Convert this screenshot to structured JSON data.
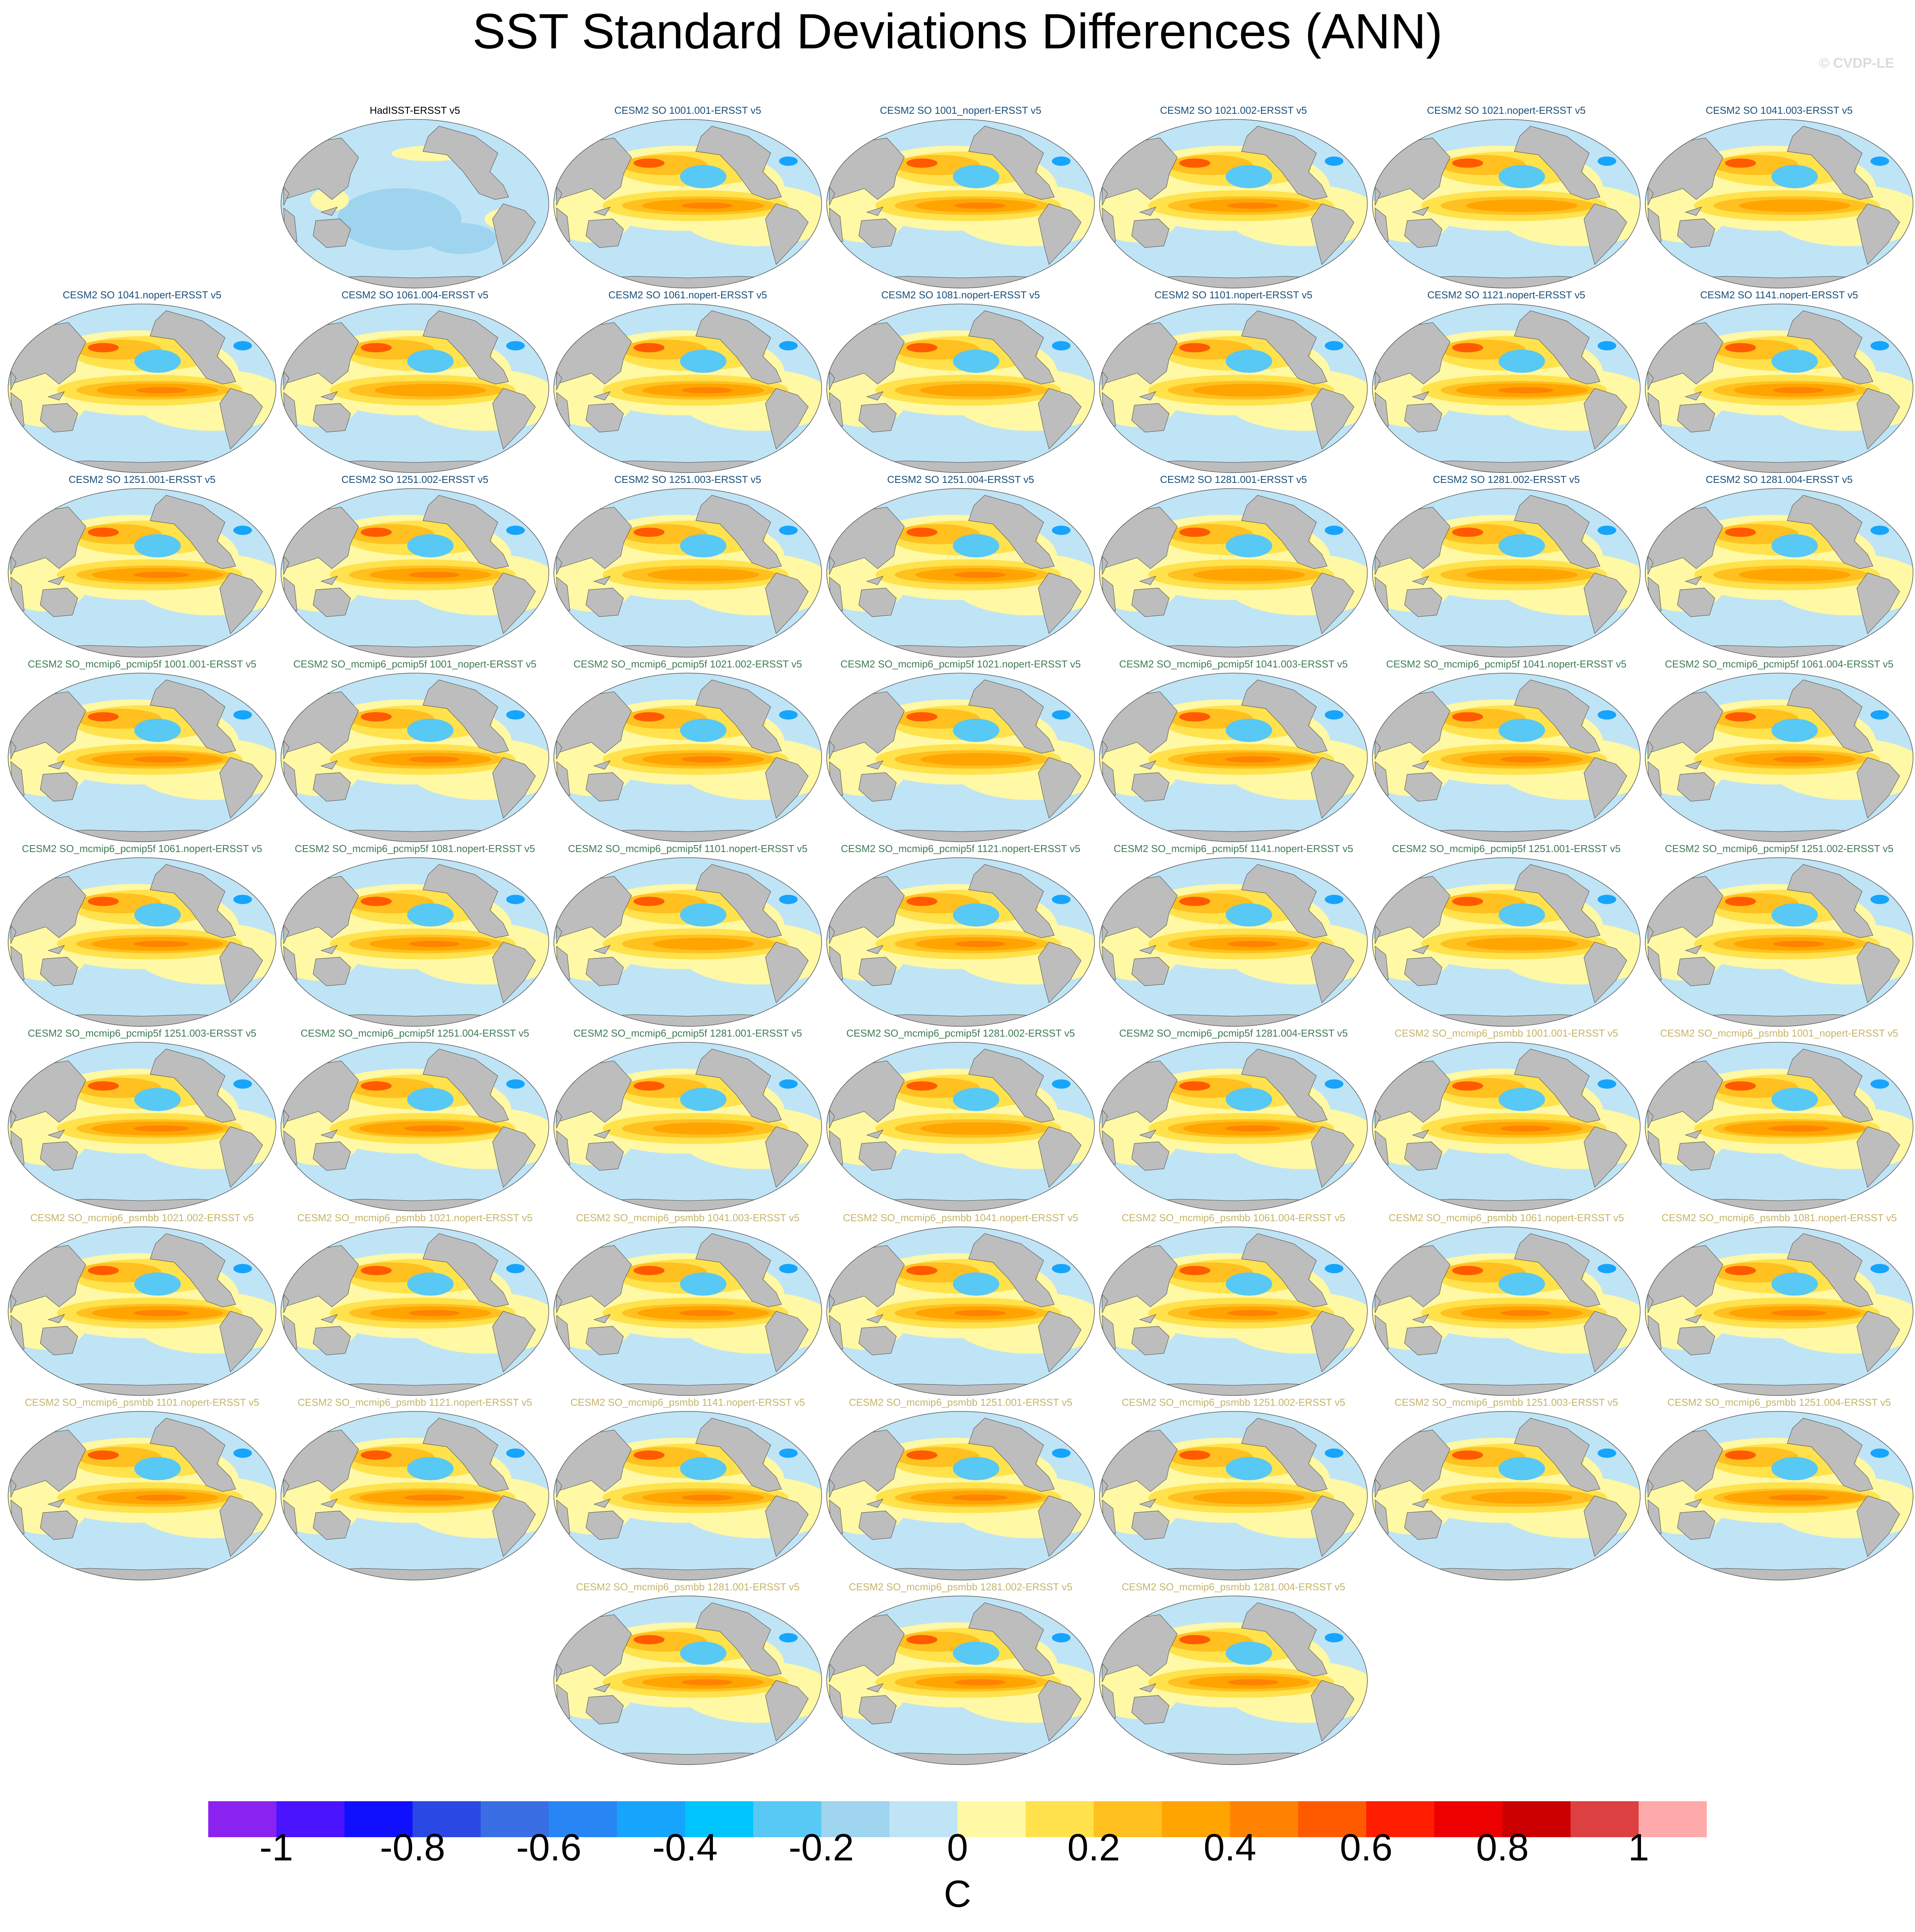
{
  "title": "SST Standard Deviations Differences (ANN)",
  "credit": "© CVDP-LE",
  "chart_data": {
    "type": "heatmap",
    "title": "SST Standard Deviations Differences (ANN)",
    "variable": "SST standard deviation difference vs ERSST v5",
    "season": "ANN",
    "projection": "global map (Robinson-like, Pacific-centered)",
    "units": "C",
    "colorbar": {
      "min": -1.1,
      "max": 1.1,
      "interval": 0.1,
      "tick_labels": [
        "-1",
        "-0.8",
        "-0.6",
        "-0.4",
        "-0.2",
        "0",
        "0.2",
        "0.4",
        "0.6",
        "0.8",
        "1"
      ],
      "tick_values": [
        -1,
        -0.8,
        -0.6,
        -0.4,
        -0.2,
        0,
        0.2,
        0.4,
        0.6,
        0.8,
        1
      ],
      "colors": [
        "#8a22f0",
        "#4a14ff",
        "#1010ff",
        "#2a48e4",
        "#3a6ee4",
        "#2886f4",
        "#16a4fc",
        "#00c4fc",
        "#58c8f4",
        "#9ed4ee",
        "#bee4f6",
        "#fff8a4",
        "#ffe24c",
        "#ffc020",
        "#ffa400",
        "#ff8200",
        "#ff5a00",
        "#ff1e00",
        "#ee0000",
        "#cc0000",
        "#dc4040",
        "#ffaaaa"
      ]
    },
    "panels": [
      {
        "label": "HadISST-ERSST v5",
        "group": "obs",
        "row": 0,
        "col": 1,
        "nino_strength": -0.1
      },
      {
        "label": "CESM2 SO 1001.001-ERSST v5",
        "group": "so",
        "row": 0,
        "col": 2,
        "nino_strength": 0.45
      },
      {
        "label": "CESM2 SO 1001_nopert-ERSST v5",
        "group": "so",
        "row": 0,
        "col": 3,
        "nino_strength": 0.45
      },
      {
        "label": "CESM2 SO 1021.002-ERSST v5",
        "group": "so",
        "row": 0,
        "col": 4,
        "nino_strength": 0.45
      },
      {
        "label": "CESM2 SO 1021.nopert-ERSST v5",
        "group": "so",
        "row": 0,
        "col": 5,
        "nino_strength": 0.4
      },
      {
        "label": "CESM2 SO 1041.003-ERSST v5",
        "group": "so",
        "row": 0,
        "col": 6,
        "nino_strength": 0.4
      },
      {
        "label": "CESM2 SO 1041.nopert-ERSST v5",
        "group": "so",
        "row": 1,
        "col": 0,
        "nino_strength": 0.45
      },
      {
        "label": "CESM2 SO 1061.004-ERSST v5",
        "group": "so",
        "row": 1,
        "col": 1,
        "nino_strength": 0.4
      },
      {
        "label": "CESM2 SO 1061.nopert-ERSST v5",
        "group": "so",
        "row": 1,
        "col": 2,
        "nino_strength": 0.45
      },
      {
        "label": "CESM2 SO 1081.nopert-ERSST v5",
        "group": "so",
        "row": 1,
        "col": 3,
        "nino_strength": 0.4
      },
      {
        "label": "CESM2 SO 1101.nopert-ERSST v5",
        "group": "so",
        "row": 1,
        "col": 4,
        "nino_strength": 0.4
      },
      {
        "label": "CESM2 SO 1121.nopert-ERSST v5",
        "group": "so",
        "row": 1,
        "col": 5,
        "nino_strength": 0.5
      },
      {
        "label": "CESM2 SO 1141.nopert-ERSST v5",
        "group": "so",
        "row": 1,
        "col": 6,
        "nino_strength": 0.45
      },
      {
        "label": "CESM2 SO 1251.001-ERSST v5",
        "group": "so",
        "row": 2,
        "col": 0,
        "nino_strength": 0.5
      },
      {
        "label": "CESM2 SO 1251.002-ERSST v5",
        "group": "so",
        "row": 2,
        "col": 1,
        "nino_strength": 0.45
      },
      {
        "label": "CESM2 SO 1251.003-ERSST v5",
        "group": "so",
        "row": 2,
        "col": 2,
        "nino_strength": 0.4
      },
      {
        "label": "CESM2 SO 1251.004-ERSST v5",
        "group": "so",
        "row": 2,
        "col": 3,
        "nino_strength": 0.45
      },
      {
        "label": "CESM2 SO 1281.001-ERSST v5",
        "group": "so",
        "row": 2,
        "col": 4,
        "nino_strength": 0.4
      },
      {
        "label": "CESM2 SO 1281.002-ERSST v5",
        "group": "so",
        "row": 2,
        "col": 5,
        "nino_strength": 0.4
      },
      {
        "label": "CESM2 SO 1281.004-ERSST v5",
        "group": "so",
        "row": 2,
        "col": 6,
        "nino_strength": 0.4
      },
      {
        "label": "CESM2 SO_mcmip6_pcmip5f 1001.001-ERSST v5",
        "group": "pcmip5f",
        "row": 3,
        "col": 0,
        "nino_strength": 0.5
      },
      {
        "label": "CESM2 SO_mcmip6_pcmip5f 1001_nopert-ERSST v5",
        "group": "pcmip5f",
        "row": 3,
        "col": 1,
        "nino_strength": 0.45
      },
      {
        "label": "CESM2 SO_mcmip6_pcmip5f 1021.002-ERSST v5",
        "group": "pcmip5f",
        "row": 3,
        "col": 2,
        "nino_strength": 0.45
      },
      {
        "label": "CESM2 SO_mcmip6_pcmip5f 1021.nopert-ERSST v5",
        "group": "pcmip5f",
        "row": 3,
        "col": 3,
        "nino_strength": 0.4
      },
      {
        "label": "CESM2 SO_mcmip6_pcmip5f 1041.003-ERSST v5",
        "group": "pcmip5f",
        "row": 3,
        "col": 4,
        "nino_strength": 0.5
      },
      {
        "label": "CESM2 SO_mcmip6_pcmip5f 1041.nopert-ERSST v5",
        "group": "pcmip5f",
        "row": 3,
        "col": 5,
        "nino_strength": 0.45
      },
      {
        "label": "CESM2 SO_mcmip6_pcmip5f 1061.004-ERSST v5",
        "group": "pcmip5f",
        "row": 3,
        "col": 6,
        "nino_strength": 0.45
      },
      {
        "label": "CESM2 SO_mcmip6_pcmip5f 1061.nopert-ERSST v5",
        "group": "pcmip5f",
        "row": 4,
        "col": 0,
        "nino_strength": 0.5
      },
      {
        "label": "CESM2 SO_mcmip6_pcmip5f 1081.nopert-ERSST v5",
        "group": "pcmip5f",
        "row": 4,
        "col": 1,
        "nino_strength": 0.45
      },
      {
        "label": "CESM2 SO_mcmip6_pcmip5f 1101.nopert-ERSST v5",
        "group": "pcmip5f",
        "row": 4,
        "col": 2,
        "nino_strength": 0.35
      },
      {
        "label": "CESM2 SO_mcmip6_pcmip5f 1121.nopert-ERSST v5",
        "group": "pcmip5f",
        "row": 4,
        "col": 3,
        "nino_strength": 0.45
      },
      {
        "label": "CESM2 SO_mcmip6_pcmip5f 1141.nopert-ERSST v5",
        "group": "pcmip5f",
        "row": 4,
        "col": 4,
        "nino_strength": 0.45
      },
      {
        "label": "CESM2 SO_mcmip6_pcmip5f 1251.001-ERSST v5",
        "group": "pcmip5f",
        "row": 4,
        "col": 5,
        "nino_strength": 0.4
      },
      {
        "label": "CESM2 SO_mcmip6_pcmip5f 1251.002-ERSST v5",
        "group": "pcmip5f",
        "row": 4,
        "col": 6,
        "nino_strength": 0.45
      },
      {
        "label": "CESM2 SO_mcmip6_pcmip5f 1251.003-ERSST v5",
        "group": "pcmip5f",
        "row": 5,
        "col": 0,
        "nino_strength": 0.5
      },
      {
        "label": "CESM2 SO_mcmip6_pcmip5f 1251.004-ERSST v5",
        "group": "pcmip5f",
        "row": 5,
        "col": 1,
        "nino_strength": 0.55
      },
      {
        "label": "CESM2 SO_mcmip6_pcmip5f 1281.001-ERSST v5",
        "group": "pcmip5f",
        "row": 5,
        "col": 2,
        "nino_strength": 0.35
      },
      {
        "label": "CESM2 SO_mcmip6_pcmip5f 1281.002-ERSST v5",
        "group": "pcmip5f",
        "row": 5,
        "col": 3,
        "nino_strength": 0.4
      },
      {
        "label": "CESM2 SO_mcmip6_pcmip5f 1281.004-ERSST v5",
        "group": "pcmip5f",
        "row": 5,
        "col": 4,
        "nino_strength": 0.5
      },
      {
        "label": "CESM2 SO_mcmip6_psmbb 1001.001-ERSST v5",
        "group": "psmbb",
        "row": 5,
        "col": 5,
        "nino_strength": 0.45
      },
      {
        "label": "CESM2 SO_mcmip6_psmbb 1001_nopert-ERSST v5",
        "group": "psmbb",
        "row": 5,
        "col": 6,
        "nino_strength": 0.55
      },
      {
        "label": "CESM2 SO_mcmip6_psmbb 1021.002-ERSST v5",
        "group": "psmbb",
        "row": 6,
        "col": 0,
        "nino_strength": 0.5
      },
      {
        "label": "CESM2 SO_mcmip6_psmbb 1021.nopert-ERSST v5",
        "group": "psmbb",
        "row": 6,
        "col": 1,
        "nino_strength": 0.45
      },
      {
        "label": "CESM2 SO_mcmip6_psmbb 1041.003-ERSST v5",
        "group": "psmbb",
        "row": 6,
        "col": 2,
        "nino_strength": 0.5
      },
      {
        "label": "CESM2 SO_mcmip6_psmbb 1041.nopert-ERSST v5",
        "group": "psmbb",
        "row": 6,
        "col": 3,
        "nino_strength": 0.45
      },
      {
        "label": "CESM2 SO_mcmip6_psmbb 1061.004-ERSST v5",
        "group": "psmbb",
        "row": 6,
        "col": 4,
        "nino_strength": 0.45
      },
      {
        "label": "CESM2 SO_mcmip6_psmbb 1061.nopert-ERSST v5",
        "group": "psmbb",
        "row": 6,
        "col": 5,
        "nino_strength": 0.45
      },
      {
        "label": "CESM2 SO_mcmip6_psmbb 1081.nopert-ERSST v5",
        "group": "psmbb",
        "row": 6,
        "col": 6,
        "nino_strength": 0.5
      },
      {
        "label": "CESM2 SO_mcmip6_psmbb 1101.nopert-ERSST v5",
        "group": "psmbb",
        "row": 7,
        "col": 0,
        "nino_strength": 0.45
      },
      {
        "label": "CESM2 SO_mcmip6_psmbb 1121.nopert-ERSST v5",
        "group": "psmbb",
        "row": 7,
        "col": 1,
        "nino_strength": 0.55
      },
      {
        "label": "CESM2 SO_mcmip6_psmbb 1141.nopert-ERSST v5",
        "group": "psmbb",
        "row": 7,
        "col": 2,
        "nino_strength": 0.45
      },
      {
        "label": "CESM2 SO_mcmip6_psmbb 1251.001-ERSST v5",
        "group": "psmbb",
        "row": 7,
        "col": 3,
        "nino_strength": 0.5
      },
      {
        "label": "CESM2 SO_mcmip6_psmbb 1251.002-ERSST v5",
        "group": "psmbb",
        "row": 7,
        "col": 4,
        "nino_strength": 0.4
      },
      {
        "label": "CESM2 SO_mcmip6_psmbb 1251.003-ERSST v5",
        "group": "psmbb",
        "row": 7,
        "col": 5,
        "nino_strength": 0.35
      },
      {
        "label": "CESM2 SO_mcmip6_psmbb 1251.004-ERSST v5",
        "group": "psmbb",
        "row": 7,
        "col": 6,
        "nino_strength": 0.55
      },
      {
        "label": "CESM2 SO_mcmip6_psmbb 1281.001-ERSST v5",
        "group": "psmbb",
        "row": 8,
        "col": 2,
        "nino_strength": 0.45
      },
      {
        "label": "CESM2 SO_mcmip6_psmbb 1281.002-ERSST v5",
        "group": "psmbb",
        "row": 8,
        "col": 3,
        "nino_strength": 0.45
      },
      {
        "label": "CESM2 SO_mcmip6_psmbb 1281.004-ERSST v5",
        "group": "psmbb",
        "row": 8,
        "col": 4,
        "nino_strength": 0.45
      }
    ],
    "label_colors": {
      "obs": "#000000",
      "so": "#1a4f7a",
      "pcmip5f": "#3f7a55",
      "psmbb": "#c6b468"
    },
    "map_colors": {
      "land": "#bdbdbd",
      "coast": "#444444",
      "ocean_neg": "#bee4f6",
      "ocean_pos": "#fff8a4",
      "pos2": "#ffe24c",
      "pos3": "#ffc020",
      "pos4": "#ffa400",
      "pos5": "#ff8200",
      "pos6": "#ff5a00",
      "neg2": "#9ed4ee",
      "neg3": "#58c8f4",
      "neg4": "#16a4fc"
    }
  }
}
